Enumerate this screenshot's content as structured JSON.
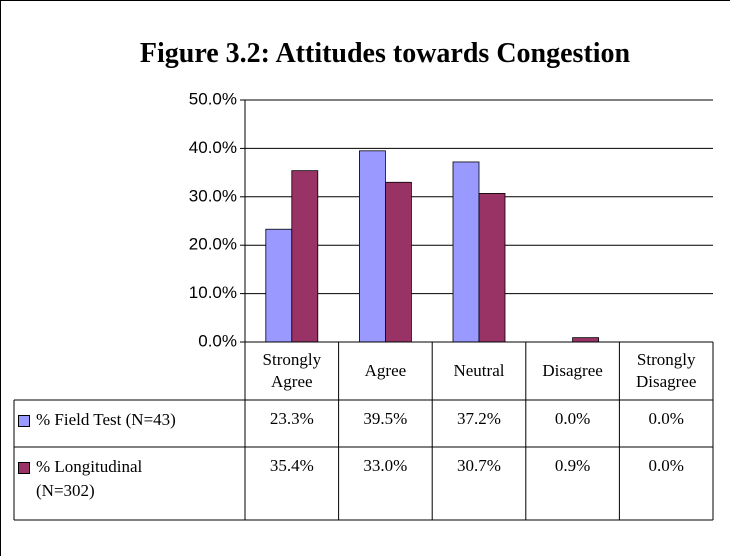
{
  "chart_data": {
    "type": "bar",
    "title": "Figure 3.2: Attitudes towards Congestion",
    "categories": [
      "Strongly Agree",
      "Agree",
      "Neutral",
      "Disagree",
      "Strongly Disagree"
    ],
    "series": [
      {
        "name": "% Field Test (N=43)",
        "color": "#9999ff",
        "values": [
          23.3,
          39.5,
          37.2,
          0.0,
          0.0
        ],
        "value_labels": [
          "23.3%",
          "39.5%",
          "37.2%",
          "0.0%",
          "0.0%"
        ]
      },
      {
        "name": "% Longitudinal (N=302)",
        "color": "#993366",
        "values": [
          35.4,
          33.0,
          30.7,
          0.9,
          0.0
        ],
        "value_labels": [
          "35.4%",
          "33.0%",
          "30.7%",
          "0.9%",
          "0.0%"
        ]
      }
    ],
    "ylim": [
      0,
      50
    ],
    "yticks": [
      {
        "value": 0,
        "label": "0.0%"
      },
      {
        "value": 10,
        "label": "10.0%"
      },
      {
        "value": 20,
        "label": "20.0%"
      },
      {
        "value": 30,
        "label": "30.0%"
      },
      {
        "value": 40,
        "label": "40.0%"
      },
      {
        "value": 50,
        "label": "50.0%"
      }
    ],
    "grid": true
  }
}
